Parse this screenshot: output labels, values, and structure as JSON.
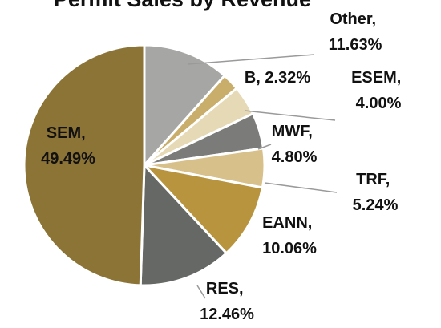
{
  "chart_data": {
    "type": "pie",
    "title": "Permit Sales by Revenue",
    "values": [
      11.63,
      2.32,
      4.0,
      4.8,
      5.24,
      10.06,
      12.46,
      49.49
    ],
    "value_labels": [
      "Other, 11.63%",
      "B, 2.32%",
      "ESEM, 4.00%",
      "MWF, 4.80%",
      "TRF, 5.24%",
      "EANN, 10.06%",
      "RES, 12.46%",
      "SEM, 49.49%"
    ],
    "colors": [
      "#a6a6a4",
      "#c9ad6a",
      "#e6d9b5",
      "#7b7b79",
      "#d8c08a",
      "#b8943f",
      "#666865",
      "#8c7336"
    ]
  }
}
